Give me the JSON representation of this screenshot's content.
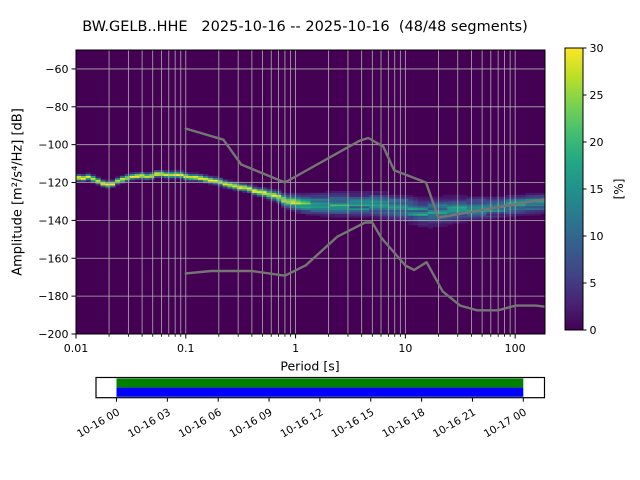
{
  "title": "BW.GELB..HHE   2025-10-16 -- 2025-10-16  (48/48 segments)",
  "chart_data": {
    "type": "heatmap",
    "title": "BW.GELB..HHE   2025-10-16 -- 2025-10-16  (48/48 segments)",
    "xlabel": "Period [s]",
    "ylabel": "Amplitude [m²/s⁴/Hz] [dB]",
    "xscale": "log",
    "xlim": [
      0.01,
      187
    ],
    "ylim": [
      -200,
      -50
    ],
    "x_ticks": [
      0.01,
      0.1,
      1,
      10,
      100
    ],
    "x_tick_labels": [
      "0.01",
      "0.1",
      "1",
      "10",
      "100"
    ],
    "y_ticks": [
      -200,
      -180,
      -160,
      -140,
      -120,
      -100,
      -80,
      -60
    ],
    "y_tick_labels": [
      "−200",
      "−180",
      "−160",
      "−140",
      "−120",
      "−100",
      "−80",
      "−60"
    ],
    "grid": true,
    "grid_color": "#b0b0b0",
    "background_color": "#440154",
    "colormap_stops": [
      [
        0.0,
        "#440154"
      ],
      [
        0.1,
        "#482475"
      ],
      [
        0.2,
        "#414487"
      ],
      [
        0.3,
        "#355f8d"
      ],
      [
        0.4,
        "#2a788e"
      ],
      [
        0.5,
        "#21918c"
      ],
      [
        0.6,
        "#22a884"
      ],
      [
        0.7,
        "#44bf70"
      ],
      [
        0.8,
        "#7ad151"
      ],
      [
        0.9,
        "#bddf26"
      ],
      [
        1.0,
        "#fde725"
      ]
    ],
    "colorbar": {
      "label": "[%]",
      "min": 0,
      "max": 30,
      "ticks": [
        0,
        5,
        10,
        15,
        20,
        25,
        30
      ],
      "tick_labels": [
        "0",
        "5",
        "10",
        "15",
        "20",
        "25",
        "30"
      ]
    },
    "psd_mode": {
      "periods_s": [
        0.01,
        0.013,
        0.016,
        0.018,
        0.022,
        0.028,
        0.035,
        0.05,
        0.07,
        0.1,
        0.14,
        0.2,
        0.3,
        0.45,
        0.65,
        0.9,
        1.2,
        1.8,
        2.5,
        3.5,
        5.0,
        7.0,
        10,
        14,
        20,
        28,
        40,
        60,
        85,
        120,
        187
      ],
      "db": [
        -117.0,
        -117.5,
        -119.5,
        -121.0,
        -120.5,
        -118.5,
        -117.0,
        -116.0,
        -116.0,
        -116.5,
        -117.5,
        -119.5,
        -122.0,
        -124.5,
        -127.5,
        -130.0,
        -131.5,
        -131.5,
        -131.7,
        -131.7,
        -131.7,
        -132.5,
        -133.5,
        -136.0,
        -135.5,
        -134.5,
        -133.8,
        -133.2,
        -132.5,
        -131.8,
        -131.2
      ],
      "spread_db": [
        0.9,
        0.9,
        0.9,
        0.9,
        0.9,
        0.9,
        0.9,
        0.9,
        0.9,
        0.95,
        0.95,
        1.0,
        1.0,
        1.1,
        1.4,
        2.0,
        2.6,
        3.0,
        3.2,
        3.2,
        3.2,
        3.4,
        3.6,
        3.6,
        3.6,
        3.4,
        3.0,
        2.8,
        2.6,
        2.5,
        2.5
      ],
      "peak_probability": [
        1,
        1,
        1,
        1,
        1,
        1,
        1,
        1,
        1,
        1,
        1,
        1,
        1,
        1,
        0.95,
        0.8,
        0.62,
        0.55,
        0.52,
        0.52,
        0.55,
        0.52,
        0.5,
        0.48,
        0.48,
        0.5,
        0.52,
        0.55,
        0.58,
        0.6,
        0.6
      ]
    },
    "noise_models": {
      "color": "#757575",
      "nhnm": {
        "periods_s": [
          0.1,
          0.22,
          0.32,
          0.8,
          3.8,
          4.6,
          6.3,
          7.9,
          15.4,
          20.0,
          187.0
        ],
        "db": [
          -91.5,
          -97.4,
          -110.5,
          -120.0,
          -98.0,
          -96.5,
          -101.0,
          -113.5,
          -120.0,
          -138.5,
          -128.8
        ]
      },
      "nlnm": {
        "periods_s": [
          0.1,
          0.17,
          0.4,
          0.8,
          1.24,
          2.4,
          4.3,
          5.0,
          6.0,
          10.0,
          12.0,
          15.6,
          21.9,
          31.6,
          45.0,
          70.0,
          101.0,
          154.0,
          187.0
        ],
        "db": [
          -168.0,
          -166.7,
          -166.7,
          -169.2,
          -163.7,
          -148.6,
          -141.1,
          -141.1,
          -149.0,
          -163.8,
          -166.2,
          -162.1,
          -177.5,
          -185.0,
          -187.5,
          -187.5,
          -185.0,
          -185.0,
          -185.6
        ]
      }
    },
    "timeline": {
      "tick_labels": [
        "10-16 00",
        "10-16 03",
        "10-16 06",
        "10-16 09",
        "10-16 12",
        "10-16 15",
        "10-16 18",
        "10-16 21",
        "10-17 00"
      ],
      "top_bar_color": "#008000",
      "bottom_bar_color": "#0000ff"
    }
  }
}
